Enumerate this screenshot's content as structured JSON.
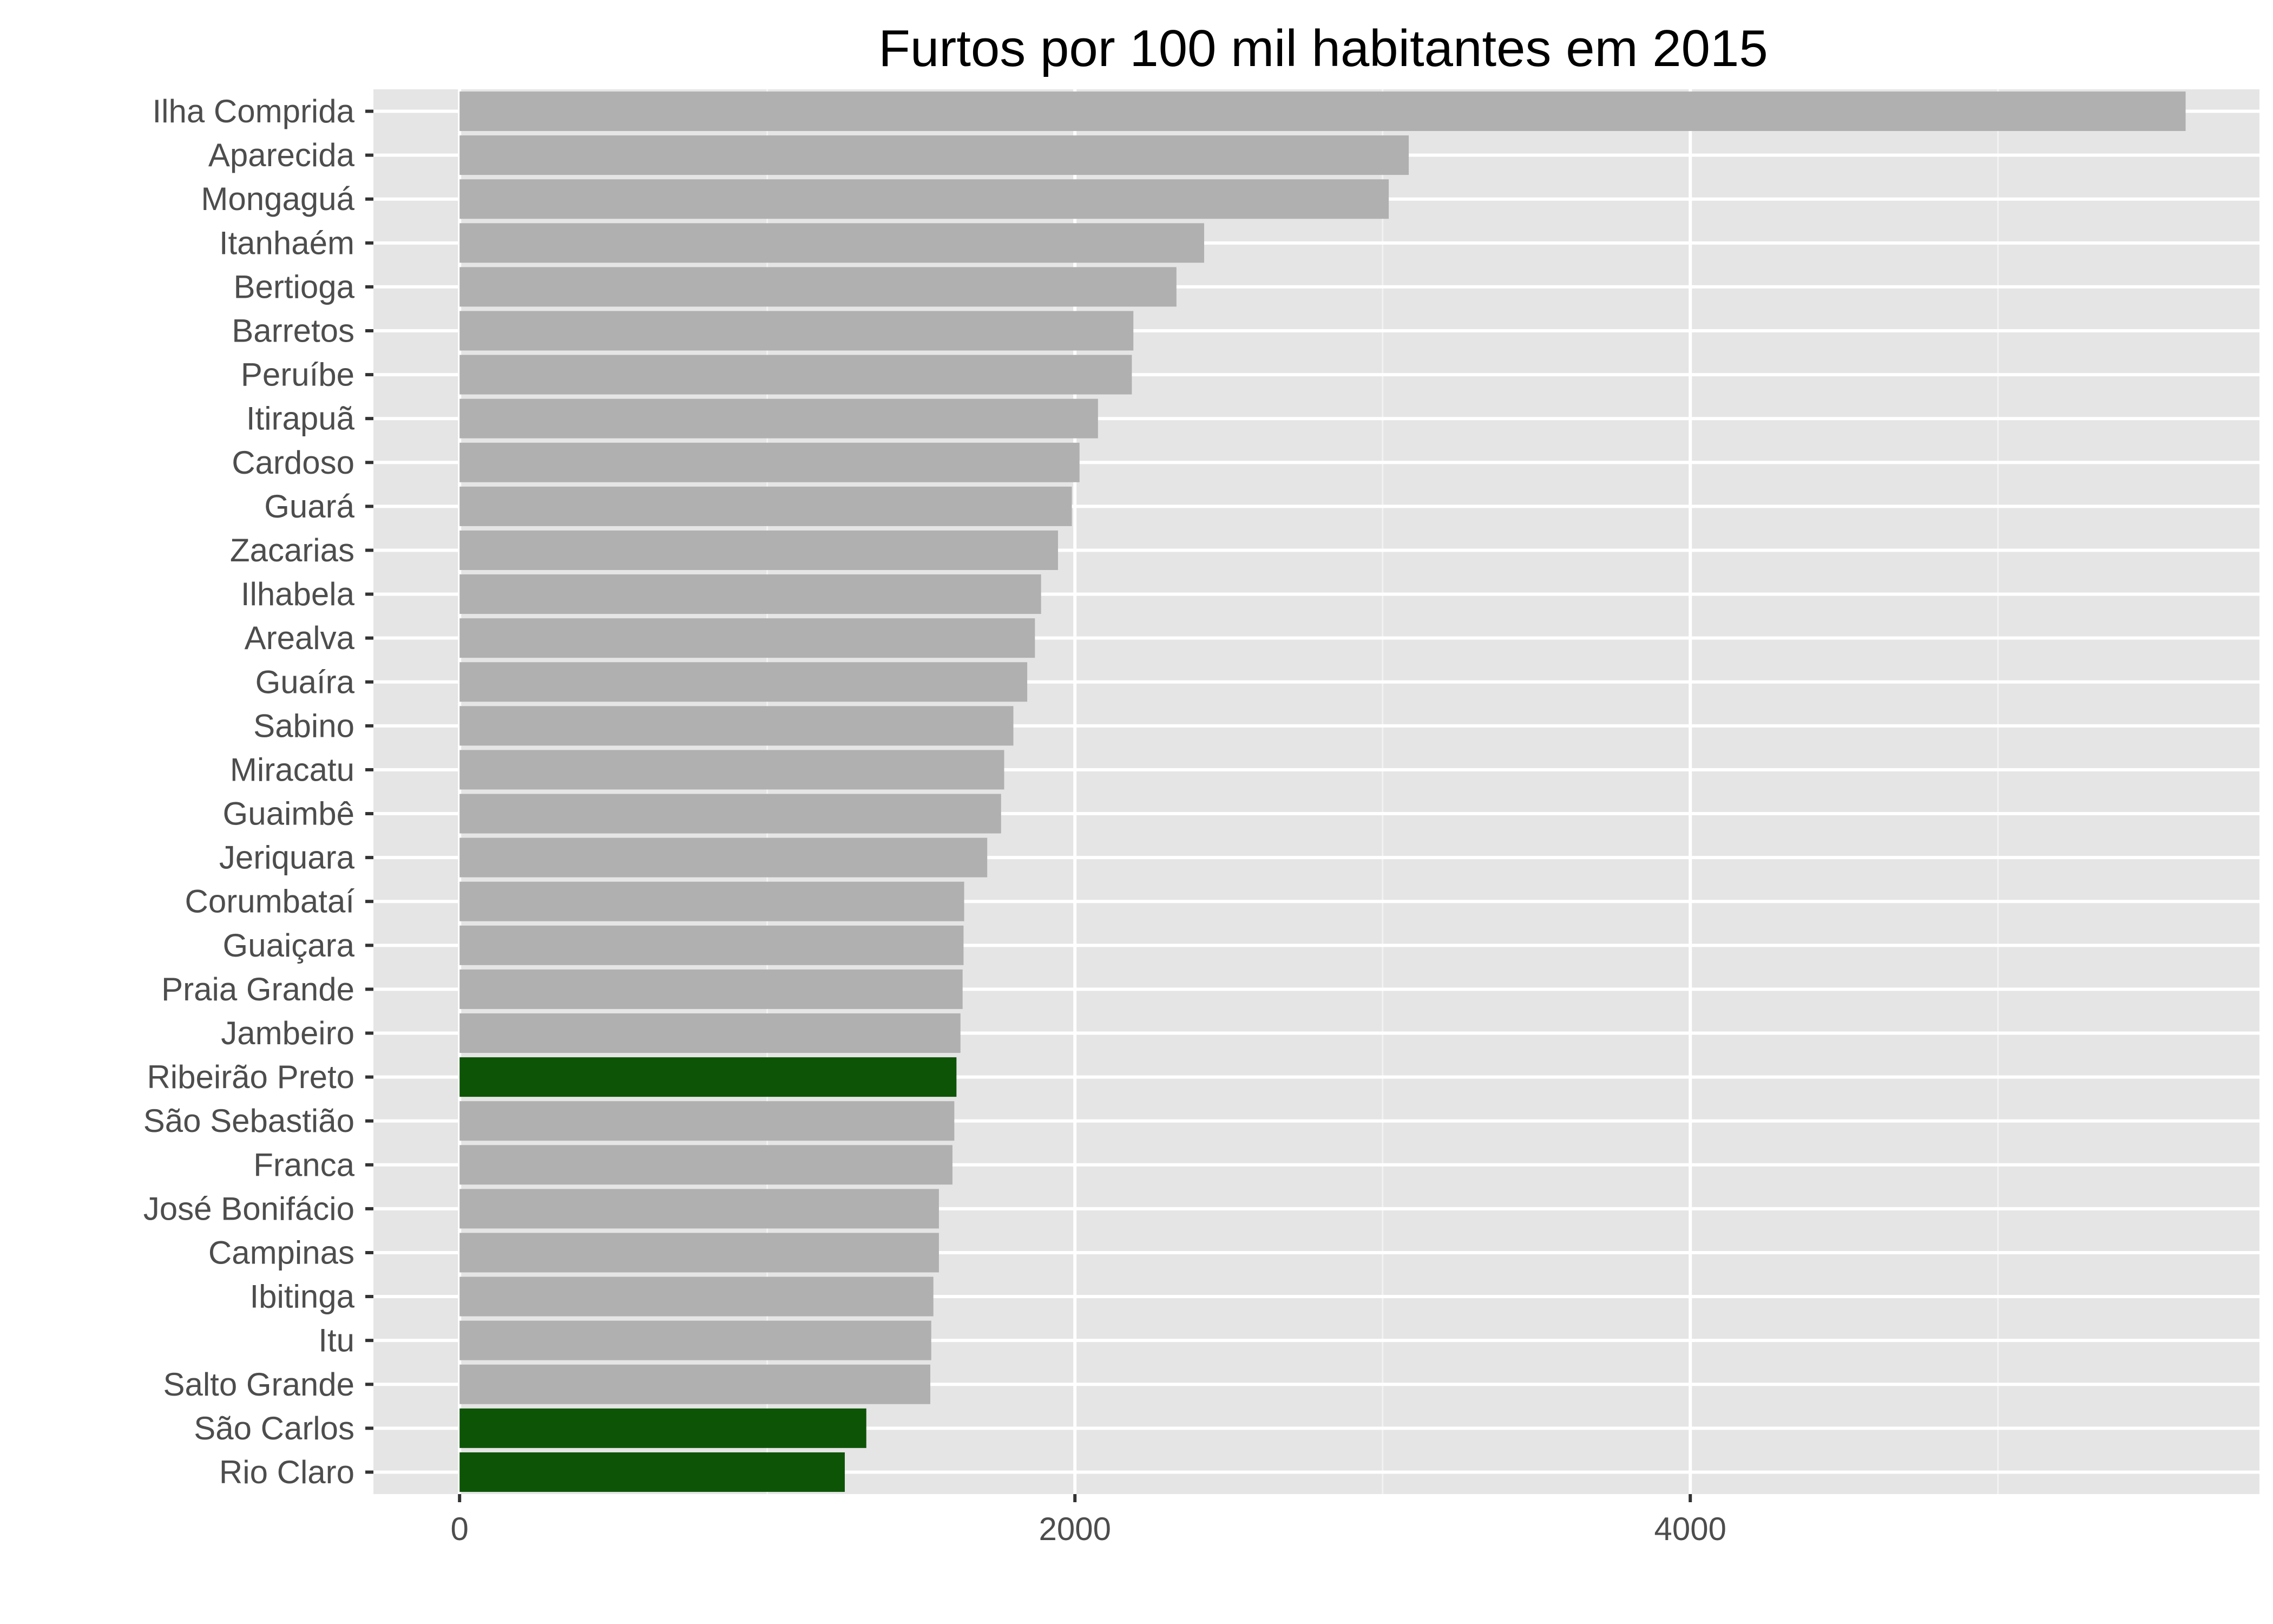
{
  "chart_data": {
    "type": "bar",
    "orientation": "horizontal",
    "title": "Furtos por 100 mil habitantes em 2015",
    "xlabel": "",
    "ylabel": "",
    "xlim": [
      -280,
      5850
    ],
    "x_ticks": [
      0,
      2000,
      4000
    ],
    "grid": true,
    "categories": [
      "Ilha Comprida",
      "Aparecida",
      "Mongaguá",
      "Itanhaém",
      "Bertioga",
      "Barretos",
      "Peruíbe",
      "Itirapuã",
      "Cardoso",
      "Guará",
      "Zacarias",
      "Ilhabela",
      "Arealva",
      "Guaíra",
      "Sabino",
      "Miracatu",
      "Guaimbê",
      "Jeriquara",
      "Corumbataí",
      "Guaiçara",
      "Praia Grande",
      "Jambeiro",
      "Ribeirão Preto",
      "São Sebastião",
      "Franca",
      "José Bonifácio",
      "Campinas",
      "Ibitinga",
      "Itu",
      "Salto Grande",
      "São Carlos",
      "Rio Claro"
    ],
    "values": [
      5610,
      3085,
      3020,
      2420,
      2330,
      2190,
      2185,
      2075,
      2015,
      1990,
      1945,
      1890,
      1870,
      1845,
      1800,
      1770,
      1760,
      1715,
      1640,
      1638,
      1635,
      1628,
      1615,
      1608,
      1602,
      1558,
      1558,
      1540,
      1533,
      1530,
      1322,
      1252
    ],
    "highlighted": [
      "Ribeirão Preto",
      "São Carlos",
      "Rio Claro"
    ],
    "colors": {
      "default_bar": "#b0b0b0",
      "highlight_bar": "#0d5407",
      "panel_background": "#e5e5e5",
      "grid_major": "#ffffff",
      "grid_minor": "#f2f2f2",
      "axis_text": "#4d4d4d"
    }
  }
}
